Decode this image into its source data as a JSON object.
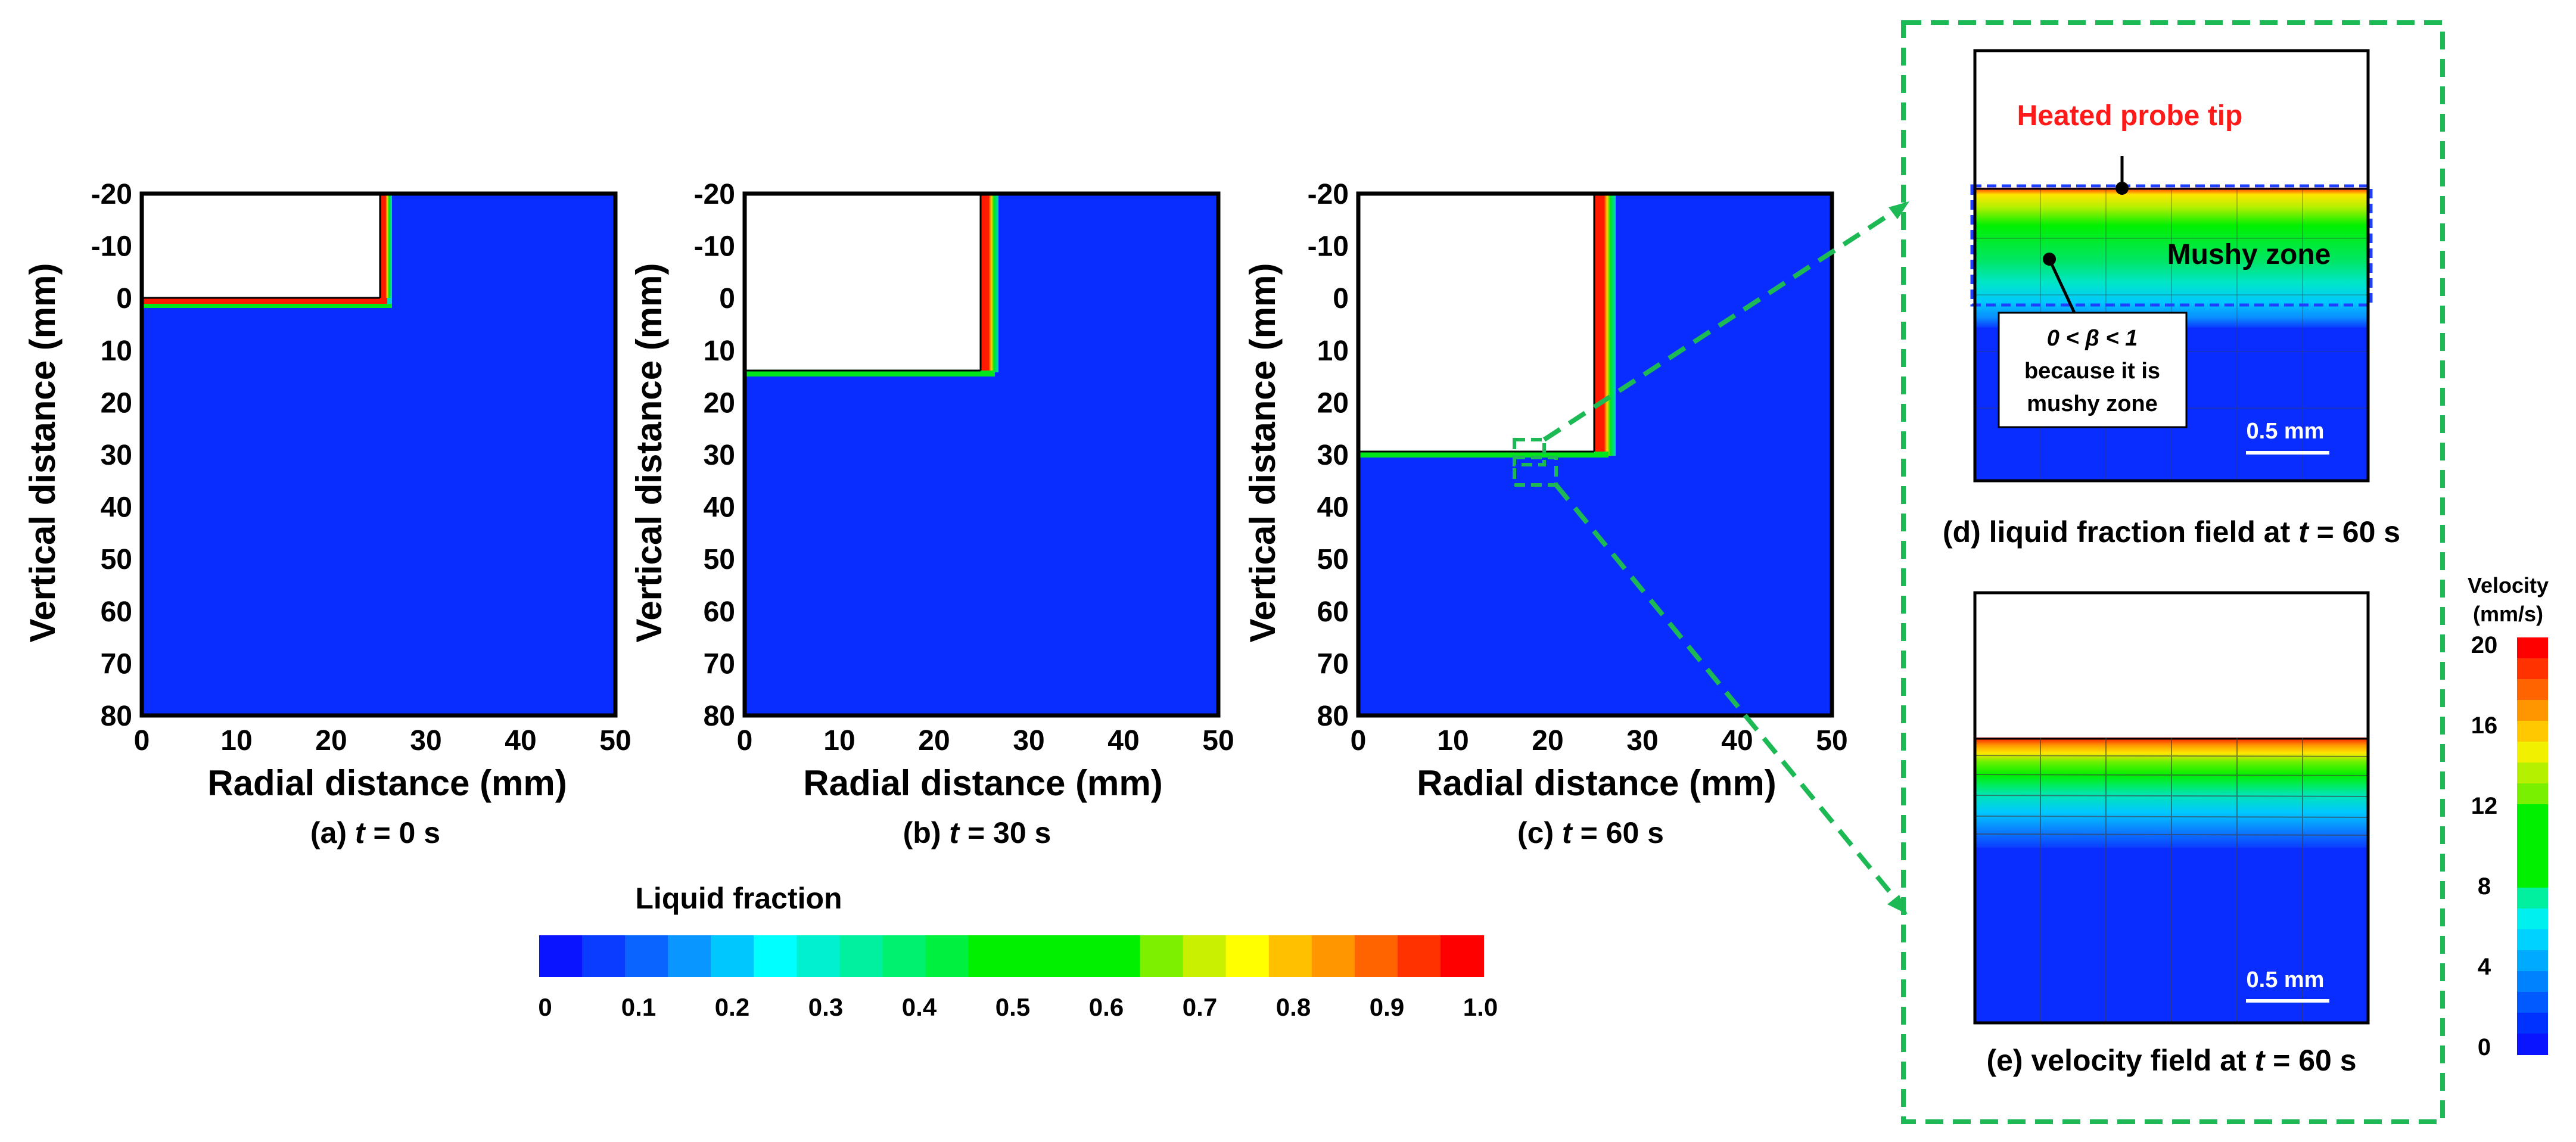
{
  "colors": {
    "solid_blue": "#0a2dff",
    "dashed_box": "#1db954",
    "probe_label": "#ff1a1a",
    "liquid_red": "#ff1a00",
    "mushy_green": "#00e61a"
  },
  "panels": [
    {
      "id": "a",
      "caption_prefix": "(a) ",
      "caption_var": "t",
      "caption_suffix": " = 0 s",
      "time_s": 0,
      "probe_radius_mm": 26,
      "probe_bottom_mm": 0,
      "xlabel": "Radial distance (mm)",
      "ylabel": "Vertical distance (mm)",
      "xticks": [
        "0",
        "10",
        "20",
        "30",
        "40",
        "50"
      ],
      "yticks": [
        "-20",
        "-10",
        "0",
        "10",
        "20",
        "30",
        "40",
        "50",
        "60",
        "70",
        "80"
      ]
    },
    {
      "id": "b",
      "caption_prefix": "(b) ",
      "caption_var": "t",
      "caption_suffix": " = 30 s",
      "time_s": 30,
      "probe_radius_mm": 26,
      "probe_bottom_mm": 15,
      "xlabel": "Radial distance (mm)",
      "ylabel": "Vertical distance (mm)",
      "xticks": [
        "0",
        "10",
        "20",
        "30",
        "40",
        "50"
      ],
      "yticks": [
        "-20",
        "-10",
        "0",
        "10",
        "20",
        "30",
        "40",
        "50",
        "60",
        "70",
        "80"
      ]
    },
    {
      "id": "c",
      "caption_prefix": "(c) ",
      "caption_var": "t",
      "caption_suffix": " = 60 s",
      "time_s": 60,
      "probe_radius_mm": 26,
      "probe_bottom_mm": 30,
      "xlabel": "Radial distance (mm)",
      "ylabel": "Vertical distance (mm)",
      "xticks": [
        "0",
        "10",
        "20",
        "30",
        "40",
        "50"
      ],
      "yticks": [
        "-20",
        "-10",
        "0",
        "10",
        "20",
        "30",
        "40",
        "50",
        "60",
        "70",
        "80"
      ]
    }
  ],
  "liquid_fraction_colorbar": {
    "title": "Liquid fraction",
    "ticks": [
      "0",
      "0.1",
      "0.2",
      "0.3",
      "0.4",
      "0.5",
      "0.6",
      "0.7",
      "0.8",
      "0.9",
      "1.0"
    ],
    "colors": [
      "#0a14ff",
      "#0a3cff",
      "#0a64ff",
      "#0a96ff",
      "#00c8ff",
      "#00ffff",
      "#00f0d0",
      "#00f0a0",
      "#00f070",
      "#00f040",
      "#00f000",
      "#00f000",
      "#00f000",
      "#00f000",
      "#7df000",
      "#c8f000",
      "#ffff00",
      "#ffc000",
      "#ff9600",
      "#ff6400",
      "#ff3200",
      "#ff0000"
    ]
  },
  "inset_d": {
    "caption_prefix": "(d) liquid fraction field at ",
    "caption_var": "t",
    "caption_suffix": " = 60 s",
    "probe_label": "Heated probe tip",
    "mushy_label": "Mushy zone",
    "note_line1_prefix": "0 < ",
    "note_beta": "β",
    "note_line1_suffix": " < 1",
    "note_line2": "because it is",
    "note_line3": "mushy zone",
    "scale_label": "0.5 mm"
  },
  "inset_e": {
    "caption_prefix": "(e) velocity field at ",
    "caption_var": "t",
    "caption_suffix": " = 60 s",
    "scale_label": "0.5 mm"
  },
  "velocity_colorbar": {
    "title_line1": "Velocity",
    "title_line2": "(mm/s)",
    "ticks": [
      "20",
      "16",
      "12",
      "8",
      "4",
      "0"
    ],
    "colors": [
      "#ff0000",
      "#ff3200",
      "#ff6400",
      "#ff9600",
      "#ffc800",
      "#f0f000",
      "#b4f000",
      "#78f000",
      "#00f000",
      "#00f000",
      "#00f000",
      "#00f000",
      "#00f0a0",
      "#00f0f0",
      "#00d2ff",
      "#00aaff",
      "#0082ff",
      "#005aff",
      "#0032ff",
      "#0a14ff"
    ]
  },
  "chart_data": [
    {
      "type": "heatmap",
      "panel": "a",
      "caption": "(a) t = 0 s",
      "quantity": "Liquid fraction",
      "xlabel": "Radial distance (mm)",
      "ylabel": "Vertical distance (mm)",
      "xlim": [
        0,
        50
      ],
      "ylim": [
        -20,
        80
      ],
      "y_inverted": true,
      "probe_region_mm": {
        "r": [
          0,
          26
        ],
        "z": [
          -20,
          0
        ]
      },
      "liquid_layer_mm": {
        "r": [
          26,
          27
        ],
        "z": [
          -20,
          0
        ]
      },
      "bulk_liquid_fraction": 0
    },
    {
      "type": "heatmap",
      "panel": "b",
      "caption": "(b) t = 30 s",
      "quantity": "Liquid fraction",
      "xlabel": "Radial distance (mm)",
      "ylabel": "Vertical distance (mm)",
      "xlim": [
        0,
        50
      ],
      "ylim": [
        -20,
        80
      ],
      "y_inverted": true,
      "probe_region_mm": {
        "r": [
          0,
          26
        ],
        "z": [
          -20,
          15
        ]
      },
      "liquid_layer_mm": {
        "r": [
          25.5,
          28
        ],
        "z": [
          -20,
          15
        ]
      },
      "bulk_liquid_fraction": 0
    },
    {
      "type": "heatmap",
      "panel": "c",
      "caption": "(c) t = 60 s",
      "quantity": "Liquid fraction",
      "xlabel": "Radial distance (mm)",
      "ylabel": "Vertical distance (mm)",
      "xlim": [
        0,
        50
      ],
      "ylim": [
        -20,
        80
      ],
      "y_inverted": true,
      "probe_region_mm": {
        "r": [
          0,
          26
        ],
        "z": [
          -20,
          30
        ]
      },
      "liquid_layer_mm": {
        "r": [
          25.5,
          28.5
        ],
        "z": [
          -20,
          30
        ]
      },
      "bulk_liquid_fraction": 0
    },
    {
      "type": "heatmap",
      "panel": "d",
      "caption": "(d) liquid fraction field at t = 60 s",
      "quantity": "Liquid fraction",
      "colorbar_range": [
        0,
        1.0
      ]
    },
    {
      "type": "heatmap",
      "panel": "e",
      "caption": "(e) velocity field at t = 60 s",
      "quantity": "Velocity (mm/s)",
      "colorbar_range": [
        0,
        20
      ]
    }
  ]
}
